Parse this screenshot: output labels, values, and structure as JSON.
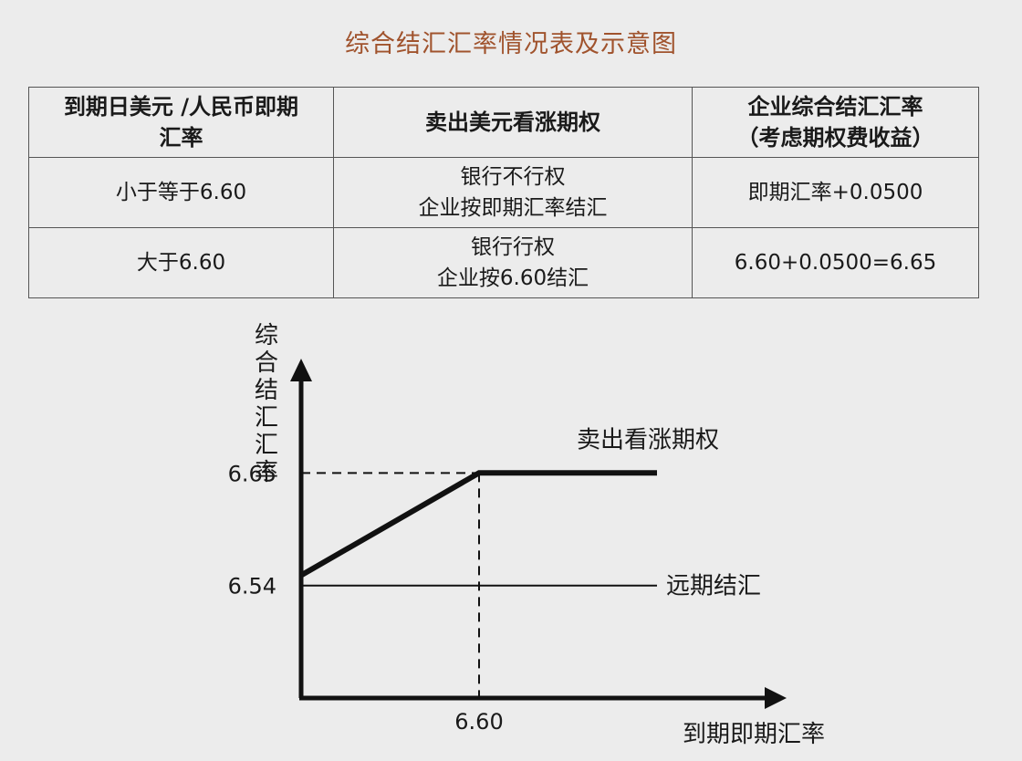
{
  "title": "综合结汇汇率情况表及示意图",
  "table": {
    "headers": [
      [
        "到期日美元 /人民币即期",
        "汇率"
      ],
      [
        "卖出美元看涨期权"
      ],
      [
        "企业综合结汇汇率",
        "（考虑期权费收益）"
      ]
    ],
    "rows": [
      {
        "condition": "小于等于6.60",
        "action": [
          "银行不行权",
          "企业按即期汇率结汇"
        ],
        "rate": "即期汇率+0.0500"
      },
      {
        "condition": "大于6.60",
        "action": [
          "银行行权",
          "企业按6.60结汇"
        ],
        "rate": "6.60+0.0500=6.65"
      }
    ]
  },
  "chart_data": {
    "type": "line",
    "ylabel": "综合结汇汇率",
    "xlabel": "到期即期汇率",
    "yticks": [
      "6.65",
      "6.54"
    ],
    "xticks": [
      "6.60"
    ],
    "strike": 6.6,
    "series": [
      {
        "name": "卖出看涨期权",
        "x": [
          6.5,
          6.6,
          6.7
        ],
        "y": [
          6.55,
          6.65,
          6.65
        ]
      },
      {
        "name": "远期结汇",
        "x": [
          6.5,
          6.7
        ],
        "y": [
          6.54,
          6.54
        ]
      }
    ],
    "xlim": [
      6.5,
      6.7
    ],
    "ylim": [
      6.43,
      6.76
    ]
  }
}
